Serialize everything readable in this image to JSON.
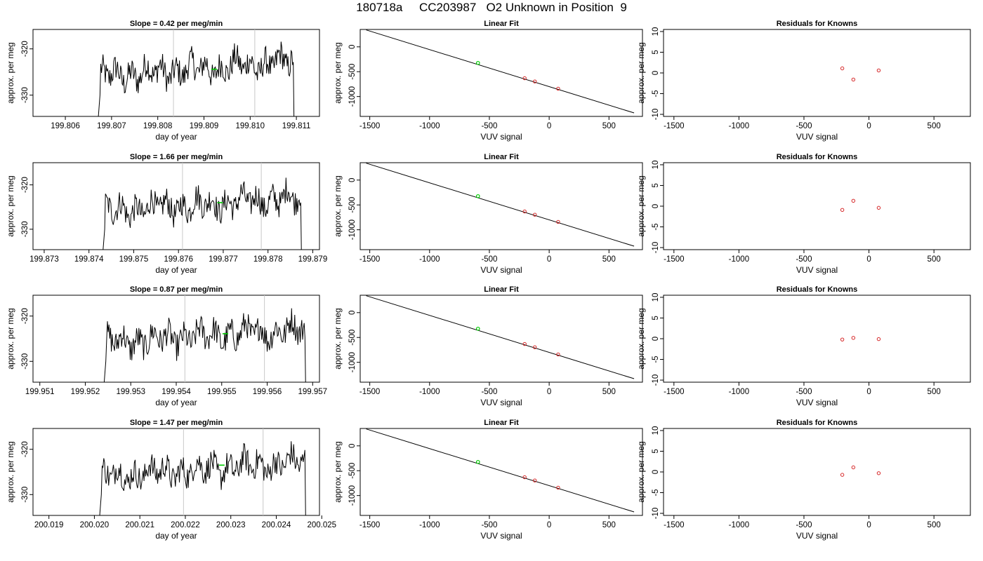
{
  "figure": {
    "title": "180718a     CC203987   O2 Unknown in Position  9"
  },
  "colors": {
    "trace": "#000000",
    "marker": "#00cc00",
    "vline": "#c8c8c8",
    "known_point": "#d62728",
    "fit_line": "#000000"
  },
  "chart_data": [
    {
      "type": "line",
      "title": "Slope =  0.42  per meg/min",
      "xlabel": "day of year",
      "ylabel": "approx. per meg",
      "xlim": [
        199.8053,
        199.8115
      ],
      "ylim": [
        -334.6,
        -315.8
      ],
      "xticks": [
        "199.806",
        "199.807",
        "199.808",
        "199.809",
        "199.810",
        "199.811"
      ],
      "yticks": [
        "-320",
        "-330"
      ],
      "ytick_values": [
        -320,
        -330
      ],
      "trace_start": 199.8067,
      "trace_end": 199.811,
      "vlines": [
        199.80834,
        199.8101
      ],
      "marker": {
        "x": 199.80922,
        "y": -324.4
      },
      "grid": false
    },
    {
      "type": "scatter",
      "title": "Linear Fit",
      "xlabel": "VUV signal",
      "ylabel": "approx. per meg",
      "xlim": [
        -1580,
        780
      ],
      "ylim": [
        -1400,
        350
      ],
      "xticks": [
        "-1500",
        "-1000",
        "-500",
        "0",
        "500"
      ],
      "yticks": [
        "0",
        "-500",
        "-1000"
      ],
      "ytick_values": [
        0,
        -500,
        -1000
      ],
      "fit_line": {
        "x": [
          -1530,
          710
        ],
        "y": [
          340,
          -1330
        ]
      },
      "known_points": [
        {
          "x": -205,
          "y": -632
        },
        {
          "x": -120,
          "y": -697
        },
        {
          "x": 75,
          "y": -842
        }
      ],
      "unknown_point": {
        "x": -595,
        "y": -324
      },
      "grid": false
    },
    {
      "type": "scatter",
      "title": "Residuals for Knowns",
      "xlabel": "VUV signal",
      "ylabel": "approx. per meg",
      "xlim": [
        -1580,
        780
      ],
      "ylim": [
        -10.5,
        10.5
      ],
      "xticks": [
        "-1500",
        "-1000",
        "-500",
        "0",
        "500"
      ],
      "yticks": [
        "10",
        "5",
        "0",
        "-5",
        "-10"
      ],
      "ytick_values": [
        10,
        5,
        0,
        -5,
        -10
      ],
      "residuals": [
        {
          "x": -205,
          "y": 1.1
        },
        {
          "x": -120,
          "y": -1.6
        },
        {
          "x": 75,
          "y": 0.6
        }
      ],
      "grid": false
    },
    {
      "type": "line",
      "title": "Slope =  1.66  per meg/min",
      "xlabel": "day of year",
      "ylabel": "approx. per meg",
      "xlim": [
        199.87275,
        199.87915
      ],
      "ylim": [
        -334.6,
        -315.0
      ],
      "xticks": [
        "199.873",
        "199.874",
        "199.875",
        "199.876",
        "199.877",
        "199.878",
        "199.879"
      ],
      "yticks": [
        "-320",
        "-330"
      ],
      "ytick_values": [
        -320,
        -330
      ],
      "trace_start": 199.8743,
      "trace_end": 199.8788,
      "vlines": [
        199.87609,
        199.87785
      ],
      "marker": {
        "x": 199.87693,
        "y": -324.0
      },
      "grid": false
    },
    {
      "type": "scatter",
      "title": "Linear Fit",
      "xlabel": "VUV signal",
      "ylabel": "approx. per meg",
      "xlim": [
        -1580,
        780
      ],
      "ylim": [
        -1400,
        350
      ],
      "xticks": [
        "-1500",
        "-1000",
        "-500",
        "0",
        "500"
      ],
      "yticks": [
        "0",
        "-500",
        "-1000"
      ],
      "ytick_values": [
        0,
        -500,
        -1000
      ],
      "fit_line": {
        "x": [
          -1530,
          710
        ],
        "y": [
          340,
          -1330
        ]
      },
      "known_points": [
        {
          "x": -205,
          "y": -632
        },
        {
          "x": -120,
          "y": -697
        },
        {
          "x": 75,
          "y": -842
        }
      ],
      "unknown_point": {
        "x": -595,
        "y": -324
      },
      "grid": false
    },
    {
      "type": "scatter",
      "title": "Residuals for Knowns",
      "xlabel": "VUV signal",
      "ylabel": "approx. per meg",
      "xlim": [
        -1580,
        780
      ],
      "ylim": [
        -10.5,
        10.5
      ],
      "xticks": [
        "-1500",
        "-1000",
        "-500",
        "0",
        "500"
      ],
      "yticks": [
        "10",
        "5",
        "0",
        "-5",
        "-10"
      ],
      "ytick_values": [
        10,
        5,
        0,
        -5,
        -10
      ],
      "residuals": [
        {
          "x": -205,
          "y": -0.9
        },
        {
          "x": -120,
          "y": 1.3
        },
        {
          "x": 75,
          "y": -0.4
        }
      ],
      "grid": false
    },
    {
      "type": "line",
      "title": "Slope =  0.87  per meg/min",
      "xlabel": "day of year",
      "ylabel": "approx. per meg",
      "xlim": [
        199.95085,
        199.95715
      ],
      "ylim": [
        -334.6,
        -315.4
      ],
      "xticks": [
        "199.951",
        "199.952",
        "199.953",
        "199.954",
        "199.955",
        "199.956",
        "199.957"
      ],
      "yticks": [
        "-320",
        "-330"
      ],
      "ytick_values": [
        -320,
        -330
      ],
      "trace_start": 199.9524,
      "trace_end": 199.9569,
      "vlines": [
        199.95419,
        199.95594
      ],
      "marker": {
        "x": 199.95508,
        "y": -323.9
      },
      "grid": false
    },
    {
      "type": "scatter",
      "title": "Linear Fit",
      "xlabel": "VUV signal",
      "ylabel": "approx. per meg",
      "xlim": [
        -1580,
        780
      ],
      "ylim": [
        -1400,
        350
      ],
      "xticks": [
        "-1500",
        "-1000",
        "-500",
        "0",
        "500"
      ],
      "yticks": [
        "0",
        "-500",
        "-1000"
      ],
      "ytick_values": [
        0,
        -500,
        -1000
      ],
      "fit_line": {
        "x": [
          -1530,
          710
        ],
        "y": [
          340,
          -1330
        ]
      },
      "known_points": [
        {
          "x": -205,
          "y": -632
        },
        {
          "x": -120,
          "y": -697
        },
        {
          "x": 75,
          "y": -842
        }
      ],
      "unknown_point": {
        "x": -595,
        "y": -324
      },
      "grid": false
    },
    {
      "type": "scatter",
      "title": "Residuals for Knowns",
      "xlabel": "VUV signal",
      "ylabel": "approx. per meg",
      "xlim": [
        -1580,
        780
      ],
      "ylim": [
        -10.5,
        10.5
      ],
      "xticks": [
        "-1500",
        "-1000",
        "-500",
        "0",
        "500"
      ],
      "yticks": [
        "10",
        "5",
        "0",
        "-5",
        "-10"
      ],
      "ytick_values": [
        10,
        5,
        0,
        -5,
        -10
      ],
      "residuals": [
        {
          "x": -205,
          "y": -0.2
        },
        {
          "x": -120,
          "y": 0.2
        },
        {
          "x": 75,
          "y": -0.1
        }
      ],
      "grid": false
    },
    {
      "type": "line",
      "title": "Slope =  1.47  per meg/min",
      "xlabel": "day of year",
      "ylabel": "approx. per meg",
      "xlim": [
        200.01865,
        200.02495
      ],
      "ylim": [
        -334.6,
        -315.4
      ],
      "xticks": [
        "200.019",
        "200.020",
        "200.021",
        "200.022",
        "200.023",
        "200.024",
        "200.025"
      ],
      "yticks": [
        "-320",
        "-330"
      ],
      "ytick_values": [
        -320,
        -330
      ],
      "trace_start": 200.0201,
      "trace_end": 200.0247,
      "vlines": [
        200.02196,
        200.02371
      ],
      "marker": {
        "x": 200.0228,
        "y": -323.5
      },
      "grid": false
    },
    {
      "type": "scatter",
      "title": "Linear Fit",
      "xlabel": "VUV signal",
      "ylabel": "approx. per meg",
      "xlim": [
        -1580,
        780
      ],
      "ylim": [
        -1400,
        350
      ],
      "xticks": [
        "-1500",
        "-1000",
        "-500",
        "0",
        "500"
      ],
      "yticks": [
        "0",
        "-500",
        "-1000"
      ],
      "ytick_values": [
        0,
        -500,
        -1000
      ],
      "fit_line": {
        "x": [
          -1530,
          710
        ],
        "y": [
          340,
          -1330
        ]
      },
      "known_points": [
        {
          "x": -205,
          "y": -632
        },
        {
          "x": -120,
          "y": -697
        },
        {
          "x": 75,
          "y": -842
        }
      ],
      "unknown_point": {
        "x": -595,
        "y": -324
      },
      "grid": false
    },
    {
      "type": "scatter",
      "title": "Residuals for Knowns",
      "xlabel": "VUV signal",
      "ylabel": "approx. per meg",
      "xlim": [
        -1580,
        780
      ],
      "ylim": [
        -10.5,
        10.5
      ],
      "xticks": [
        "-1500",
        "-1000",
        "-500",
        "0",
        "500"
      ],
      "yticks": [
        "10",
        "5",
        "0",
        "-5",
        "-10"
      ],
      "ytick_values": [
        10,
        5,
        0,
        -5,
        -10
      ],
      "residuals": [
        {
          "x": -205,
          "y": -0.7
        },
        {
          "x": -120,
          "y": 1.1
        },
        {
          "x": 75,
          "y": -0.3
        }
      ],
      "grid": false
    }
  ]
}
